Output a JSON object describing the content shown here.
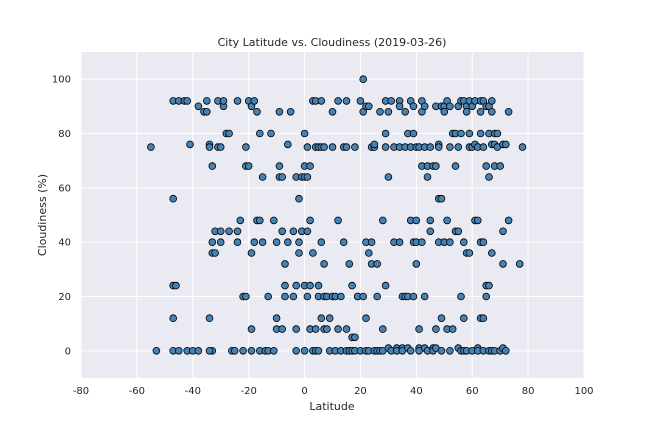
{
  "chart_data": {
    "type": "scatter",
    "title": "City Latitude vs. Cloudiness (2019-03-26)",
    "xlabel": "Latitude",
    "ylabel": "Cloudiness (%)",
    "xlim": [
      -80,
      100
    ],
    "ylim": [
      -10,
      110
    ],
    "xticks": [
      -80,
      -60,
      -40,
      -20,
      0,
      20,
      40,
      60,
      80,
      100
    ],
    "yticks": [
      0,
      20,
      40,
      60,
      80,
      100
    ],
    "grid": true,
    "colors": {
      "background": "#eaeaf2",
      "grid": "#ffffff",
      "marker_fill": "#4682b4",
      "marker_edge": "#000000"
    },
    "points": [
      [
        -55,
        75
      ],
      [
        -53,
        0
      ],
      [
        -47,
        92
      ],
      [
        -47,
        56
      ],
      [
        -47,
        24
      ],
      [
        -46,
        24
      ],
      [
        -47,
        12
      ],
      [
        -47,
        0
      ],
      [
        -45,
        0
      ],
      [
        -45,
        92
      ],
      [
        -43,
        92
      ],
      [
        -42,
        92
      ],
      [
        -41,
        76
      ],
      [
        -42,
        0
      ],
      [
        -40,
        0
      ],
      [
        -38,
        0
      ],
      [
        -38,
        90
      ],
      [
        -36,
        88
      ],
      [
        -35,
        92
      ],
      [
        -35,
        88
      ],
      [
        -34,
        76
      ],
      [
        -34,
        75
      ],
      [
        -34,
        12
      ],
      [
        -33,
        36
      ],
      [
        -33,
        0
      ],
      [
        -34,
        0
      ],
      [
        -33,
        68
      ],
      [
        -33,
        40
      ],
      [
        -32,
        44
      ],
      [
        -32,
        36
      ],
      [
        -31,
        92
      ],
      [
        -31,
        75
      ],
      [
        -30,
        75
      ],
      [
        -30,
        44
      ],
      [
        -30,
        40
      ],
      [
        -29,
        90
      ],
      [
        -29,
        92
      ],
      [
        -28,
        80
      ],
      [
        -27,
        80
      ],
      [
        -27,
        44
      ],
      [
        -26,
        0
      ],
      [
        -25,
        0
      ],
      [
        -24,
        44
      ],
      [
        -24,
        40
      ],
      [
        -24,
        92
      ],
      [
        -23,
        48
      ],
      [
        -22,
        20
      ],
      [
        -22,
        0
      ],
      [
        -21,
        75
      ],
      [
        -21,
        20
      ],
      [
        -21,
        68
      ],
      [
        -20,
        68
      ],
      [
        -20,
        92
      ],
      [
        -19,
        90
      ],
      [
        -19,
        36
      ],
      [
        -19,
        8
      ],
      [
        -19,
        0
      ],
      [
        -18,
        92
      ],
      [
        -18,
        40
      ],
      [
        -17,
        88
      ],
      [
        -17,
        48
      ],
      [
        -16,
        48
      ],
      [
        -16,
        80
      ],
      [
        -16,
        0
      ],
      [
        -15,
        64
      ],
      [
        -15,
        40
      ],
      [
        -14,
        0
      ],
      [
        -13,
        20
      ],
      [
        -13,
        0
      ],
      [
        -12,
        80
      ],
      [
        -11,
        0
      ],
      [
        -11,
        48
      ],
      [
        -10,
        12
      ],
      [
        -10,
        40
      ],
      [
        -10,
        8
      ],
      [
        -9,
        88
      ],
      [
        -9,
        68
      ],
      [
        -9,
        64
      ],
      [
        -8,
        64
      ],
      [
        -8,
        44
      ],
      [
        -8,
        8
      ],
      [
        -7,
        20
      ],
      [
        -7,
        24
      ],
      [
        -7,
        32
      ],
      [
        -6,
        40
      ],
      [
        -6,
        76
      ],
      [
        -5,
        88
      ],
      [
        -4,
        44
      ],
      [
        -4,
        20
      ],
      [
        -3,
        64
      ],
      [
        -3,
        24
      ],
      [
        -3,
        8
      ],
      [
        -3,
        0
      ],
      [
        -2,
        56
      ],
      [
        -2,
        40
      ],
      [
        -2,
        36
      ],
      [
        -1,
        44
      ],
      [
        -1,
        64
      ],
      [
        0,
        64
      ],
      [
        0,
        80
      ],
      [
        0,
        68
      ],
      [
        0,
        24
      ],
      [
        0,
        0
      ],
      [
        1,
        44
      ],
      [
        1,
        64
      ],
      [
        1,
        75
      ],
      [
        1,
        20
      ],
      [
        2,
        24
      ],
      [
        2,
        48
      ],
      [
        2,
        68
      ],
      [
        2,
        8
      ],
      [
        3,
        92
      ],
      [
        3,
        36
      ],
      [
        3,
        0
      ],
      [
        4,
        92
      ],
      [
        4,
        8
      ],
      [
        4,
        75
      ],
      [
        4,
        0
      ],
      [
        5,
        75
      ],
      [
        5,
        24
      ],
      [
        5,
        20
      ],
      [
        5,
        0
      ],
      [
        6,
        40
      ],
      [
        6,
        92
      ],
      [
        6,
        75
      ],
      [
        6,
        12
      ],
      [
        7,
        75
      ],
      [
        7,
        8
      ],
      [
        7,
        32
      ],
      [
        7,
        20
      ],
      [
        8,
        8
      ],
      [
        8,
        20
      ],
      [
        9,
        12
      ],
      [
        9,
        0
      ],
      [
        10,
        75
      ],
      [
        10,
        88
      ],
      [
        10,
        20
      ],
      [
        11,
        20
      ],
      [
        11,
        0
      ],
      [
        12,
        92
      ],
      [
        12,
        48
      ],
      [
        12,
        8
      ],
      [
        13,
        20
      ],
      [
        13,
        0
      ],
      [
        14,
        75
      ],
      [
        14,
        40
      ],
      [
        15,
        92
      ],
      [
        15,
        75
      ],
      [
        15,
        8
      ],
      [
        15,
        0
      ],
      [
        16,
        0
      ],
      [
        16,
        32
      ],
      [
        17,
        5
      ],
      [
        17,
        0
      ],
      [
        17,
        24
      ],
      [
        18,
        5
      ],
      [
        18,
        75
      ],
      [
        18,
        0
      ],
      [
        19,
        20
      ],
      [
        19,
        20
      ],
      [
        20,
        92
      ],
      [
        20,
        0
      ],
      [
        21,
        100
      ],
      [
        21,
        88
      ],
      [
        21,
        20
      ],
      [
        22,
        90
      ],
      [
        22,
        40
      ],
      [
        22,
        12
      ],
      [
        22,
        0
      ],
      [
        23,
        36
      ],
      [
        23,
        90
      ],
      [
        23,
        0
      ],
      [
        24,
        40
      ],
      [
        24,
        32
      ],
      [
        24,
        75
      ],
      [
        25,
        75
      ],
      [
        25,
        76
      ],
      [
        25,
        0
      ],
      [
        26,
        32
      ],
      [
        26,
        20
      ],
      [
        26,
        0
      ],
      [
        27,
        0
      ],
      [
        27,
        88
      ],
      [
        28,
        48
      ],
      [
        28,
        8
      ],
      [
        28,
        0
      ],
      [
        29,
        92
      ],
      [
        29,
        80
      ],
      [
        29,
        75
      ],
      [
        29,
        24
      ],
      [
        30,
        88
      ],
      [
        30,
        64
      ],
      [
        30,
        1
      ],
      [
        31,
        92
      ],
      [
        31,
        0
      ],
      [
        32,
        75
      ],
      [
        32,
        40
      ],
      [
        33,
        1
      ],
      [
        33,
        0
      ],
      [
        34,
        92
      ],
      [
        34,
        90
      ],
      [
        34,
        75
      ],
      [
        34,
        40
      ],
      [
        35,
        1
      ],
      [
        35,
        0
      ],
      [
        35,
        20
      ],
      [
        36,
        20
      ],
      [
        36,
        88
      ],
      [
        36,
        75
      ],
      [
        37,
        80
      ],
      [
        37,
        20
      ],
      [
        37,
        1
      ],
      [
        38,
        92
      ],
      [
        38,
        75
      ],
      [
        38,
        48
      ],
      [
        38,
        0
      ],
      [
        39,
        90
      ],
      [
        39,
        80
      ],
      [
        39,
        40
      ],
      [
        39,
        20
      ],
      [
        40,
        40
      ],
      [
        40,
        32
      ],
      [
        40,
        75
      ],
      [
        40,
        48
      ],
      [
        41,
        75
      ],
      [
        41,
        8
      ],
      [
        41,
        1
      ],
      [
        41,
        0
      ],
      [
        42,
        92
      ],
      [
        42,
        88
      ],
      [
        42,
        68
      ],
      [
        42,
        40
      ],
      [
        43,
        90
      ],
      [
        43,
        75
      ],
      [
        43,
        20
      ],
      [
        43,
        1
      ],
      [
        44,
        64
      ],
      [
        44,
        68
      ],
      [
        44,
        0
      ],
      [
        45,
        75
      ],
      [
        45,
        48
      ],
      [
        45,
        44
      ],
      [
        46,
        68
      ],
      [
        46,
        1
      ],
      [
        46,
        0
      ],
      [
        47,
        90
      ],
      [
        47,
        68
      ],
      [
        47,
        8
      ],
      [
        47,
        1
      ],
      [
        48,
        76
      ],
      [
        48,
        75
      ],
      [
        48,
        40
      ],
      [
        48,
        56
      ],
      [
        49,
        90
      ],
      [
        49,
        56
      ],
      [
        49,
        12
      ],
      [
        49,
        0
      ],
      [
        50,
        40
      ],
      [
        50,
        90
      ],
      [
        50,
        88
      ],
      [
        50,
        40
      ],
      [
        51,
        92
      ],
      [
        51,
        48
      ],
      [
        51,
        8
      ],
      [
        52,
        90
      ],
      [
        52,
        75
      ],
      [
        52,
        40
      ],
      [
        52,
        0
      ],
      [
        53,
        8
      ],
      [
        53,
        80
      ],
      [
        54,
        68
      ],
      [
        54,
        80
      ],
      [
        54,
        44
      ],
      [
        55,
        90
      ],
      [
        55,
        75
      ],
      [
        55,
        44
      ],
      [
        55,
        1
      ],
      [
        56,
        92
      ],
      [
        56,
        80
      ],
      [
        56,
        20
      ],
      [
        56,
        0
      ],
      [
        57,
        92
      ],
      [
        57,
        40
      ],
      [
        57,
        12
      ],
      [
        57,
        0
      ],
      [
        58,
        90
      ],
      [
        58,
        88
      ],
      [
        58,
        36
      ],
      [
        58,
        0
      ],
      [
        59,
        92
      ],
      [
        59,
        80
      ],
      [
        59,
        75
      ],
      [
        59,
        36
      ],
      [
        60,
        90
      ],
      [
        60,
        75
      ],
      [
        60,
        0
      ],
      [
        61,
        76
      ],
      [
        61,
        48
      ],
      [
        61,
        92
      ],
      [
        62,
        75
      ],
      [
        62,
        48
      ],
      [
        62,
        1
      ],
      [
        62,
        0
      ],
      [
        63,
        92
      ],
      [
        63,
        88
      ],
      [
        63,
        80
      ],
      [
        63,
        40
      ],
      [
        63,
        12
      ],
      [
        64,
        92
      ],
      [
        64,
        75
      ],
      [
        64,
        40
      ],
      [
        64,
        12
      ],
      [
        64,
        0
      ],
      [
        65,
        90
      ],
      [
        65,
        68
      ],
      [
        65,
        24
      ],
      [
        65,
        20
      ],
      [
        66,
        90
      ],
      [
        66,
        80
      ],
      [
        66,
        64
      ],
      [
        66,
        24
      ],
      [
        66,
        0
      ],
      [
        67,
        92
      ],
      [
        67,
        88
      ],
      [
        67,
        76
      ],
      [
        67,
        36
      ],
      [
        67,
        0
      ],
      [
        68,
        80
      ],
      [
        68,
        76
      ],
      [
        68,
        68
      ],
      [
        68,
        0
      ],
      [
        69,
        80
      ],
      [
        69,
        75
      ],
      [
        70,
        68
      ],
      [
        70,
        0
      ],
      [
        71,
        76
      ],
      [
        71,
        44
      ],
      [
        71,
        32
      ],
      [
        71,
        1
      ],
      [
        72,
        0
      ],
      [
        72,
        76
      ],
      [
        73,
        48
      ],
      [
        73,
        88
      ],
      [
        77,
        32
      ],
      [
        78,
        75
      ]
    ]
  }
}
